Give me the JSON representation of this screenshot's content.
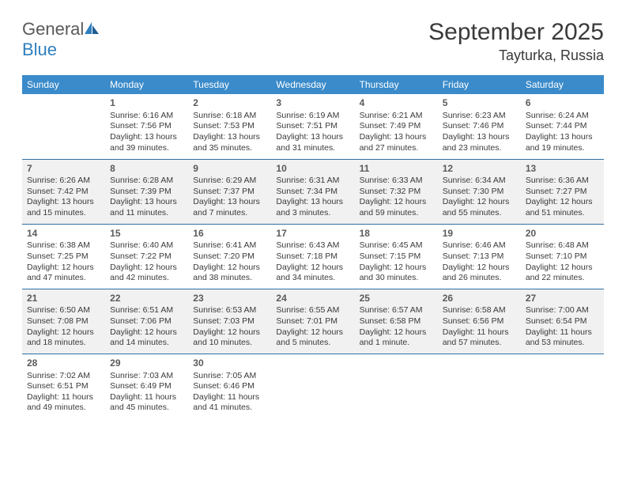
{
  "brand": {
    "general": "General",
    "blue": "Blue"
  },
  "title": "September 2025",
  "location": "Tayturka, Russia",
  "colors": {
    "header_bg": "#3b8bca",
    "header_text": "#ffffff",
    "row_divider": "#2f6fa3",
    "shade_bg": "#f1f1f1",
    "text": "#3a3a3a",
    "brand_grey": "#5a5a5a",
    "brand_blue": "#2f7fbf"
  },
  "day_headers": [
    "Sunday",
    "Monday",
    "Tuesday",
    "Wednesday",
    "Thursday",
    "Friday",
    "Saturday"
  ],
  "weeks": [
    {
      "shaded": false,
      "cells": [
        {
          "blank": true
        },
        {
          "day": "1",
          "sunrise": "Sunrise: 6:16 AM",
          "sunset": "Sunset: 7:56 PM",
          "daylight1": "Daylight: 13 hours",
          "daylight2": "and 39 minutes."
        },
        {
          "day": "2",
          "sunrise": "Sunrise: 6:18 AM",
          "sunset": "Sunset: 7:53 PM",
          "daylight1": "Daylight: 13 hours",
          "daylight2": "and 35 minutes."
        },
        {
          "day": "3",
          "sunrise": "Sunrise: 6:19 AM",
          "sunset": "Sunset: 7:51 PM",
          "daylight1": "Daylight: 13 hours",
          "daylight2": "and 31 minutes."
        },
        {
          "day": "4",
          "sunrise": "Sunrise: 6:21 AM",
          "sunset": "Sunset: 7:49 PM",
          "daylight1": "Daylight: 13 hours",
          "daylight2": "and 27 minutes."
        },
        {
          "day": "5",
          "sunrise": "Sunrise: 6:23 AM",
          "sunset": "Sunset: 7:46 PM",
          "daylight1": "Daylight: 13 hours",
          "daylight2": "and 23 minutes."
        },
        {
          "day": "6",
          "sunrise": "Sunrise: 6:24 AM",
          "sunset": "Sunset: 7:44 PM",
          "daylight1": "Daylight: 13 hours",
          "daylight2": "and 19 minutes."
        }
      ]
    },
    {
      "shaded": true,
      "cells": [
        {
          "day": "7",
          "sunrise": "Sunrise: 6:26 AM",
          "sunset": "Sunset: 7:42 PM",
          "daylight1": "Daylight: 13 hours",
          "daylight2": "and 15 minutes."
        },
        {
          "day": "8",
          "sunrise": "Sunrise: 6:28 AM",
          "sunset": "Sunset: 7:39 PM",
          "daylight1": "Daylight: 13 hours",
          "daylight2": "and 11 minutes."
        },
        {
          "day": "9",
          "sunrise": "Sunrise: 6:29 AM",
          "sunset": "Sunset: 7:37 PM",
          "daylight1": "Daylight: 13 hours",
          "daylight2": "and 7 minutes."
        },
        {
          "day": "10",
          "sunrise": "Sunrise: 6:31 AM",
          "sunset": "Sunset: 7:34 PM",
          "daylight1": "Daylight: 13 hours",
          "daylight2": "and 3 minutes."
        },
        {
          "day": "11",
          "sunrise": "Sunrise: 6:33 AM",
          "sunset": "Sunset: 7:32 PM",
          "daylight1": "Daylight: 12 hours",
          "daylight2": "and 59 minutes."
        },
        {
          "day": "12",
          "sunrise": "Sunrise: 6:34 AM",
          "sunset": "Sunset: 7:30 PM",
          "daylight1": "Daylight: 12 hours",
          "daylight2": "and 55 minutes."
        },
        {
          "day": "13",
          "sunrise": "Sunrise: 6:36 AM",
          "sunset": "Sunset: 7:27 PM",
          "daylight1": "Daylight: 12 hours",
          "daylight2": "and 51 minutes."
        }
      ]
    },
    {
      "shaded": false,
      "cells": [
        {
          "day": "14",
          "sunrise": "Sunrise: 6:38 AM",
          "sunset": "Sunset: 7:25 PM",
          "daylight1": "Daylight: 12 hours",
          "daylight2": "and 47 minutes."
        },
        {
          "day": "15",
          "sunrise": "Sunrise: 6:40 AM",
          "sunset": "Sunset: 7:22 PM",
          "daylight1": "Daylight: 12 hours",
          "daylight2": "and 42 minutes."
        },
        {
          "day": "16",
          "sunrise": "Sunrise: 6:41 AM",
          "sunset": "Sunset: 7:20 PM",
          "daylight1": "Daylight: 12 hours",
          "daylight2": "and 38 minutes."
        },
        {
          "day": "17",
          "sunrise": "Sunrise: 6:43 AM",
          "sunset": "Sunset: 7:18 PM",
          "daylight1": "Daylight: 12 hours",
          "daylight2": "and 34 minutes."
        },
        {
          "day": "18",
          "sunrise": "Sunrise: 6:45 AM",
          "sunset": "Sunset: 7:15 PM",
          "daylight1": "Daylight: 12 hours",
          "daylight2": "and 30 minutes."
        },
        {
          "day": "19",
          "sunrise": "Sunrise: 6:46 AM",
          "sunset": "Sunset: 7:13 PM",
          "daylight1": "Daylight: 12 hours",
          "daylight2": "and 26 minutes."
        },
        {
          "day": "20",
          "sunrise": "Sunrise: 6:48 AM",
          "sunset": "Sunset: 7:10 PM",
          "daylight1": "Daylight: 12 hours",
          "daylight2": "and 22 minutes."
        }
      ]
    },
    {
      "shaded": true,
      "cells": [
        {
          "day": "21",
          "sunrise": "Sunrise: 6:50 AM",
          "sunset": "Sunset: 7:08 PM",
          "daylight1": "Daylight: 12 hours",
          "daylight2": "and 18 minutes."
        },
        {
          "day": "22",
          "sunrise": "Sunrise: 6:51 AM",
          "sunset": "Sunset: 7:06 PM",
          "daylight1": "Daylight: 12 hours",
          "daylight2": "and 14 minutes."
        },
        {
          "day": "23",
          "sunrise": "Sunrise: 6:53 AM",
          "sunset": "Sunset: 7:03 PM",
          "daylight1": "Daylight: 12 hours",
          "daylight2": "and 10 minutes."
        },
        {
          "day": "24",
          "sunrise": "Sunrise: 6:55 AM",
          "sunset": "Sunset: 7:01 PM",
          "daylight1": "Daylight: 12 hours",
          "daylight2": "and 5 minutes."
        },
        {
          "day": "25",
          "sunrise": "Sunrise: 6:57 AM",
          "sunset": "Sunset: 6:58 PM",
          "daylight1": "Daylight: 12 hours",
          "daylight2": "and 1 minute."
        },
        {
          "day": "26",
          "sunrise": "Sunrise: 6:58 AM",
          "sunset": "Sunset: 6:56 PM",
          "daylight1": "Daylight: 11 hours",
          "daylight2": "and 57 minutes."
        },
        {
          "day": "27",
          "sunrise": "Sunrise: 7:00 AM",
          "sunset": "Sunset: 6:54 PM",
          "daylight1": "Daylight: 11 hours",
          "daylight2": "and 53 minutes."
        }
      ]
    },
    {
      "shaded": false,
      "cells": [
        {
          "day": "28",
          "sunrise": "Sunrise: 7:02 AM",
          "sunset": "Sunset: 6:51 PM",
          "daylight1": "Daylight: 11 hours",
          "daylight2": "and 49 minutes."
        },
        {
          "day": "29",
          "sunrise": "Sunrise: 7:03 AM",
          "sunset": "Sunset: 6:49 PM",
          "daylight1": "Daylight: 11 hours",
          "daylight2": "and 45 minutes."
        },
        {
          "day": "30",
          "sunrise": "Sunrise: 7:05 AM",
          "sunset": "Sunset: 6:46 PM",
          "daylight1": "Daylight: 11 hours",
          "daylight2": "and 41 minutes."
        },
        {
          "blank": true
        },
        {
          "blank": true
        },
        {
          "blank": true
        },
        {
          "blank": true
        }
      ]
    }
  ]
}
